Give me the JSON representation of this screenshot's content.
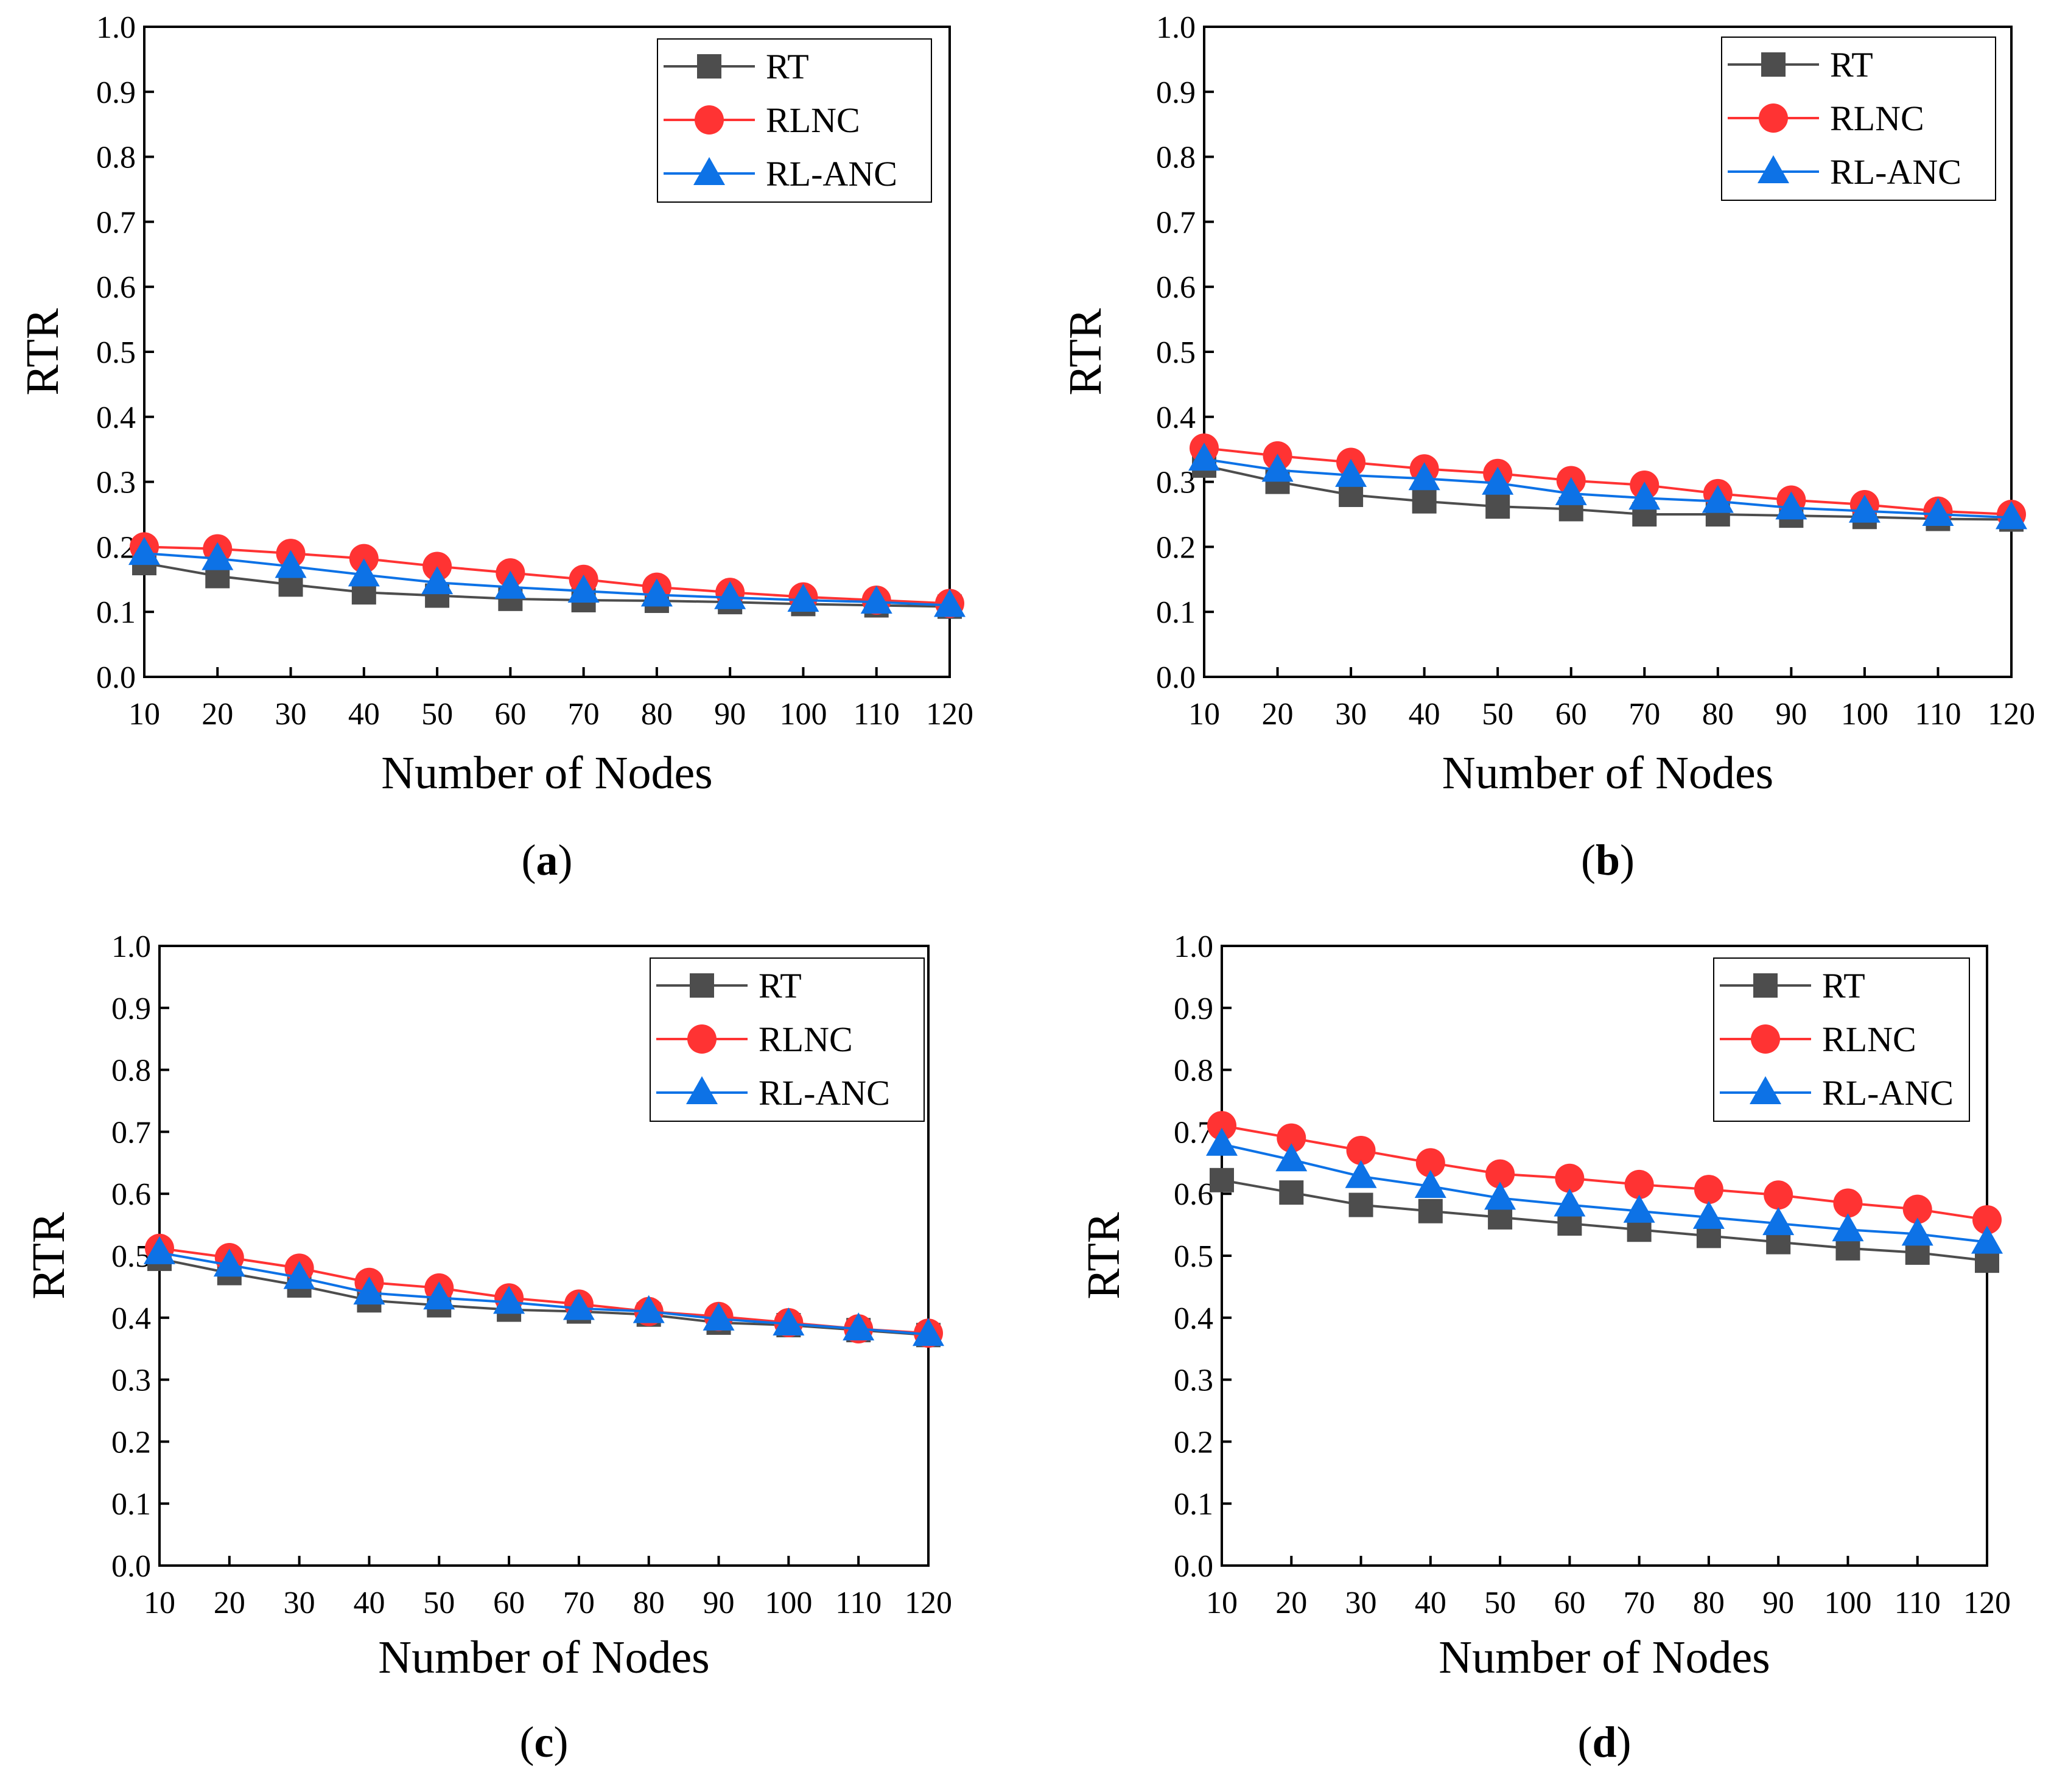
{
  "colors": {
    "RT": "#4d4d4d",
    "RLNC": "#ff3333",
    "RL-ANC": "#0d72e6"
  },
  "chart_data": [
    {
      "type": "line",
      "caption": "(a)",
      "caption_letter": "a",
      "xlabel": "Number of Nodes",
      "ylabel": "RTR",
      "ylim": [
        0.0,
        1.0
      ],
      "yticks": [
        "0.0",
        "0.1",
        "0.2",
        "0.3",
        "0.4",
        "0.5",
        "0.6",
        "0.7",
        "0.8",
        "0.9",
        "1.0"
      ],
      "categories": [
        "10",
        "20",
        "30",
        "40",
        "50",
        "60",
        "70",
        "80",
        "90",
        "100",
        "110",
        "120"
      ],
      "legend_position": "top-right",
      "series": [
        {
          "name": "RT",
          "marker": "square",
          "values": [
            0.175,
            0.155,
            0.142,
            0.13,
            0.125,
            0.12,
            0.118,
            0.117,
            0.115,
            0.112,
            0.11,
            0.108
          ]
        },
        {
          "name": "RLNC",
          "marker": "circle",
          "values": [
            0.2,
            0.197,
            0.19,
            0.182,
            0.17,
            0.16,
            0.15,
            0.138,
            0.13,
            0.123,
            0.118,
            0.113
          ]
        },
        {
          "name": "RL-ANC",
          "marker": "triangle",
          "values": [
            0.19,
            0.182,
            0.17,
            0.157,
            0.145,
            0.138,
            0.132,
            0.126,
            0.122,
            0.118,
            0.115,
            0.11
          ]
        }
      ]
    },
    {
      "type": "line",
      "caption": "(b)",
      "caption_letter": "b",
      "xlabel": "Number of Nodes",
      "ylabel": "RTR",
      "ylim": [
        0.0,
        1.0
      ],
      "yticks": [
        "0.0",
        "0.1",
        "0.2",
        "0.3",
        "0.4",
        "0.5",
        "0.6",
        "0.7",
        "0.8",
        "0.9",
        "1.0"
      ],
      "categories": [
        "10",
        "20",
        "30",
        "40",
        "50",
        "60",
        "70",
        "80",
        "90",
        "100",
        "110",
        "120"
      ],
      "legend_position": "top-right",
      "series": [
        {
          "name": "RT",
          "marker": "square",
          "values": [
            0.325,
            0.3,
            0.28,
            0.27,
            0.262,
            0.258,
            0.25,
            0.25,
            0.248,
            0.246,
            0.243,
            0.242
          ]
        },
        {
          "name": "RLNC",
          "marker": "circle",
          "values": [
            0.352,
            0.34,
            0.33,
            0.32,
            0.313,
            0.302,
            0.295,
            0.282,
            0.272,
            0.265,
            0.255,
            0.25
          ]
        },
        {
          "name": "RL-ANC",
          "marker": "triangle",
          "values": [
            0.335,
            0.318,
            0.31,
            0.305,
            0.298,
            0.282,
            0.275,
            0.27,
            0.26,
            0.255,
            0.25,
            0.245
          ]
        }
      ]
    },
    {
      "type": "line",
      "caption": "(c)",
      "caption_letter": "c",
      "xlabel": "Number of Nodes",
      "ylabel": "RTR",
      "ylim": [
        0.0,
        1.0
      ],
      "yticks": [
        "0.0",
        "0.1",
        "0.2",
        "0.3",
        "0.4",
        "0.5",
        "0.6",
        "0.7",
        "0.8",
        "0.9",
        "1.0"
      ],
      "categories": [
        "10",
        "20",
        "30",
        "40",
        "50",
        "60",
        "70",
        "80",
        "90",
        "100",
        "110",
        "120"
      ],
      "legend_position": "top-right",
      "series": [
        {
          "name": "RT",
          "marker": "square",
          "values": [
            0.495,
            0.472,
            0.452,
            0.428,
            0.42,
            0.413,
            0.41,
            0.405,
            0.392,
            0.388,
            0.38,
            0.372
          ]
        },
        {
          "name": "RLNC",
          "marker": "circle",
          "values": [
            0.512,
            0.497,
            0.48,
            0.457,
            0.448,
            0.432,
            0.422,
            0.41,
            0.402,
            0.392,
            0.382,
            0.375
          ]
        },
        {
          "name": "RL-ANC",
          "marker": "triangle",
          "values": [
            0.505,
            0.485,
            0.465,
            0.44,
            0.432,
            0.425,
            0.415,
            0.41,
            0.398,
            0.39,
            0.382,
            0.373
          ]
        }
      ]
    },
    {
      "type": "line",
      "caption": "(d)",
      "caption_letter": "d",
      "xlabel": "Number of Nodes",
      "ylabel": "RTR",
      "ylim": [
        0.0,
        1.0
      ],
      "yticks": [
        "0.0",
        "0.1",
        "0.2",
        "0.3",
        "0.4",
        "0.5",
        "0.6",
        "0.7",
        "0.8",
        "0.9",
        "1.0"
      ],
      "categories": [
        "10",
        "20",
        "30",
        "40",
        "50",
        "60",
        "70",
        "80",
        "90",
        "100",
        "110",
        "120"
      ],
      "legend_position": "top-right",
      "series": [
        {
          "name": "RT",
          "marker": "square",
          "values": [
            0.622,
            0.602,
            0.582,
            0.572,
            0.562,
            0.552,
            0.542,
            0.532,
            0.522,
            0.512,
            0.505,
            0.492
          ]
        },
        {
          "name": "RLNC",
          "marker": "circle",
          "values": [
            0.71,
            0.69,
            0.67,
            0.65,
            0.632,
            0.625,
            0.615,
            0.607,
            0.598,
            0.585,
            0.575,
            0.558
          ]
        },
        {
          "name": "RL-ANC",
          "marker": "triangle",
          "values": [
            0.68,
            0.655,
            0.628,
            0.612,
            0.593,
            0.582,
            0.572,
            0.562,
            0.552,
            0.542,
            0.535,
            0.522
          ]
        }
      ]
    }
  ]
}
